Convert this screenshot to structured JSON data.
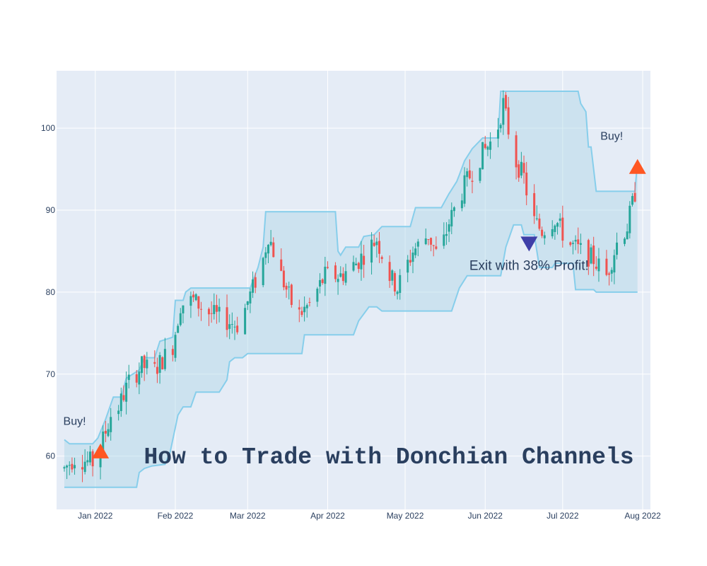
{
  "chart_data": {
    "type": "candlestick",
    "title": "",
    "xlabel": "",
    "ylabel": "",
    "grid": true,
    "colors": {
      "background": "#e5ecf6",
      "grid": "#ffffff",
      "channel_line": "#87ceeb",
      "channel_fill": "#add8e6",
      "increasing": "#26a69a",
      "decreasing": "#ef5350",
      "buy_marker": "#ff5722",
      "exit_marker": "#3f3fa8"
    },
    "x_range": [
      "2021-12-17",
      "2022-08-04"
    ],
    "y_range": [
      53.5,
      107
    ],
    "x_ticks": [
      {
        "date": "2022-01-01",
        "label": "Jan 2022"
      },
      {
        "date": "2022-02-01",
        "label": "Feb 2022"
      },
      {
        "date": "2022-03-01",
        "label": "Mar 2022"
      },
      {
        "date": "2022-04-01",
        "label": "Apr 2022"
      },
      {
        "date": "2022-05-01",
        "label": "May 2022"
      },
      {
        "date": "2022-06-01",
        "label": "Jun 2022"
      },
      {
        "date": "2022-07-01",
        "label": "Jul 2022"
      },
      {
        "date": "2022-08-01",
        "label": "Aug 2022"
      }
    ],
    "y_ticks": [
      60,
      70,
      80,
      90,
      100
    ],
    "channel_upper": [
      [
        "2021-12-20",
        62
      ],
      [
        "2021-12-22",
        61.5
      ],
      [
        "2021-12-31",
        61.5
      ],
      [
        "2022-01-02",
        62.2
      ],
      [
        "2022-01-05",
        64.5
      ],
      [
        "2022-01-08",
        67.2
      ],
      [
        "2022-01-11",
        67.2
      ],
      [
        "2022-01-13",
        69.5
      ],
      [
        "2022-01-18",
        70.5
      ],
      [
        "2022-01-20",
        72
      ],
      [
        "2022-01-24",
        72
      ],
      [
        "2022-01-26",
        74
      ],
      [
        "2022-01-31",
        74.5
      ],
      [
        "2022-02-01",
        79
      ],
      [
        "2022-02-04",
        79
      ],
      [
        "2022-02-05",
        80
      ],
      [
        "2022-02-07",
        80.5
      ],
      [
        "2022-03-02",
        80.5
      ],
      [
        "2022-03-05",
        83
      ],
      [
        "2022-03-07",
        85.5
      ],
      [
        "2022-03-08",
        89.8
      ],
      [
        "2022-04-04",
        89.8
      ],
      [
        "2022-04-05",
        85
      ],
      [
        "2022-04-06",
        84.5
      ],
      [
        "2022-04-08",
        85.5
      ],
      [
        "2022-04-13",
        85.5
      ],
      [
        "2022-04-15",
        86.8
      ],
      [
        "2022-04-19",
        87
      ],
      [
        "2022-04-22",
        88
      ],
      [
        "2022-05-03",
        88
      ],
      [
        "2022-05-05",
        90.3
      ],
      [
        "2022-05-15",
        90.3
      ],
      [
        "2022-05-18",
        92
      ],
      [
        "2022-05-21",
        93.5
      ],
      [
        "2022-05-22",
        94.3
      ],
      [
        "2022-05-24",
        96
      ],
      [
        "2022-05-27",
        97.5
      ],
      [
        "2022-05-31",
        98.8
      ],
      [
        "2022-06-06",
        98.8
      ],
      [
        "2022-06-07",
        104.5
      ],
      [
        "2022-07-07",
        104.5
      ],
      [
        "2022-07-08",
        103
      ],
      [
        "2022-07-10",
        102
      ],
      [
        "2022-07-11",
        97.7
      ],
      [
        "2022-07-12",
        97.7
      ],
      [
        "2022-07-14",
        92.3
      ],
      [
        "2022-07-29",
        92.3
      ],
      [
        "2022-07-30",
        96
      ]
    ],
    "channel_lower": [
      [
        "2021-12-20",
        56.2
      ],
      [
        "2022-01-17",
        56.2
      ],
      [
        "2022-01-18",
        58
      ],
      [
        "2022-01-20",
        58.5
      ],
      [
        "2022-01-23",
        58.8
      ],
      [
        "2022-01-28",
        59
      ],
      [
        "2022-01-30",
        60.5
      ],
      [
        "2022-02-02",
        65
      ],
      [
        "2022-02-04",
        66
      ],
      [
        "2022-02-07",
        66
      ],
      [
        "2022-02-09",
        67.8
      ],
      [
        "2022-02-18",
        67.8
      ],
      [
        "2022-02-21",
        69.3
      ],
      [
        "2022-02-22",
        71.5
      ],
      [
        "2022-02-24",
        72
      ],
      [
        "2022-02-27",
        72
      ],
      [
        "2022-03-01",
        72.5
      ],
      [
        "2022-03-22",
        72.5
      ],
      [
        "2022-03-23",
        74.8
      ],
      [
        "2022-04-11",
        74.8
      ],
      [
        "2022-04-13",
        76.5
      ],
      [
        "2022-04-17",
        78.2
      ],
      [
        "2022-04-20",
        78.2
      ],
      [
        "2022-04-22",
        77.7
      ],
      [
        "2022-05-19",
        77.7
      ],
      [
        "2022-05-22",
        80.5
      ],
      [
        "2022-05-23",
        81
      ],
      [
        "2022-05-25",
        82
      ],
      [
        "2022-06-07",
        82
      ],
      [
        "2022-06-09",
        85.5
      ],
      [
        "2022-06-12",
        88.2
      ],
      [
        "2022-06-15",
        88.2
      ],
      [
        "2022-06-16",
        87
      ],
      [
        "2022-06-20",
        87
      ],
      [
        "2022-06-22",
        83
      ],
      [
        "2022-06-27",
        83
      ],
      [
        "2022-06-28",
        83.5
      ],
      [
        "2022-07-05",
        83.5
      ],
      [
        "2022-07-06",
        80.3
      ],
      [
        "2022-07-13",
        80.3
      ],
      [
        "2022-07-14",
        80
      ],
      [
        "2022-07-30",
        80
      ]
    ],
    "price_path": [
      [
        "2021-12-20",
        58.5
      ],
      [
        "2021-12-24",
        59.8
      ],
      [
        "2021-12-31",
        59.2
      ],
      [
        "2022-01-03",
        61
      ],
      [
        "2022-01-07",
        65
      ],
      [
        "2022-01-10",
        66
      ],
      [
        "2022-01-14",
        69
      ],
      [
        "2022-01-19",
        71
      ],
      [
        "2022-01-24",
        70.5
      ],
      [
        "2022-01-31",
        73.5
      ],
      [
        "2022-02-03",
        78.5
      ],
      [
        "2022-02-08",
        79
      ],
      [
        "2022-02-14",
        77.5
      ],
      [
        "2022-02-21",
        76.5
      ],
      [
        "2022-02-25",
        76
      ],
      [
        "2022-02-28",
        78
      ],
      [
        "2022-03-03",
        80.5
      ],
      [
        "2022-03-07",
        84
      ],
      [
        "2022-03-09",
        87
      ],
      [
        "2022-03-14",
        82
      ],
      [
        "2022-03-20",
        77
      ],
      [
        "2022-03-25",
        78.5
      ],
      [
        "2022-03-31",
        82
      ],
      [
        "2022-04-06",
        82
      ],
      [
        "2022-04-12",
        83.5
      ],
      [
        "2022-04-16",
        85
      ],
      [
        "2022-04-20",
        86.5
      ],
      [
        "2022-04-25",
        82
      ],
      [
        "2022-04-28",
        80.5
      ],
      [
        "2022-05-04",
        85
      ],
      [
        "2022-05-10",
        87
      ],
      [
        "2022-05-14",
        84
      ],
      [
        "2022-05-18",
        88.5
      ],
      [
        "2022-05-24",
        93
      ],
      [
        "2022-05-31",
        97
      ],
      [
        "2022-06-05",
        99
      ],
      [
        "2022-06-08",
        103
      ],
      [
        "2022-06-12",
        96.5
      ],
      [
        "2022-06-16",
        94
      ],
      [
        "2022-06-19",
        89
      ],
      [
        "2022-06-23",
        87.5
      ],
      [
        "2022-06-28",
        89
      ],
      [
        "2022-07-03",
        86
      ],
      [
        "2022-07-08",
        85
      ],
      [
        "2022-07-13",
        84
      ],
      [
        "2022-07-18",
        82
      ],
      [
        "2022-07-22",
        86
      ],
      [
        "2022-07-26",
        88
      ],
      [
        "2022-07-30",
        93.5
      ]
    ],
    "markers": [
      {
        "kind": "buy",
        "date": "2022-01-03",
        "y": 60.5,
        "text": "Buy!",
        "text_date": "2021-12-24",
        "text_y": 63.8
      },
      {
        "kind": "exit",
        "date": "2022-06-18",
        "y": 86,
        "text": "Exit with 38% Profit!",
        "text_date": "2022-06-18",
        "text_y": 82.7
      },
      {
        "kind": "buy",
        "date": "2022-07-30",
        "y": 95.2,
        "text": "Buy!",
        "text_date": "2022-07-20",
        "text_y": 98.6
      }
    ],
    "overlay_title": "How to Trade with Donchian Channels"
  }
}
